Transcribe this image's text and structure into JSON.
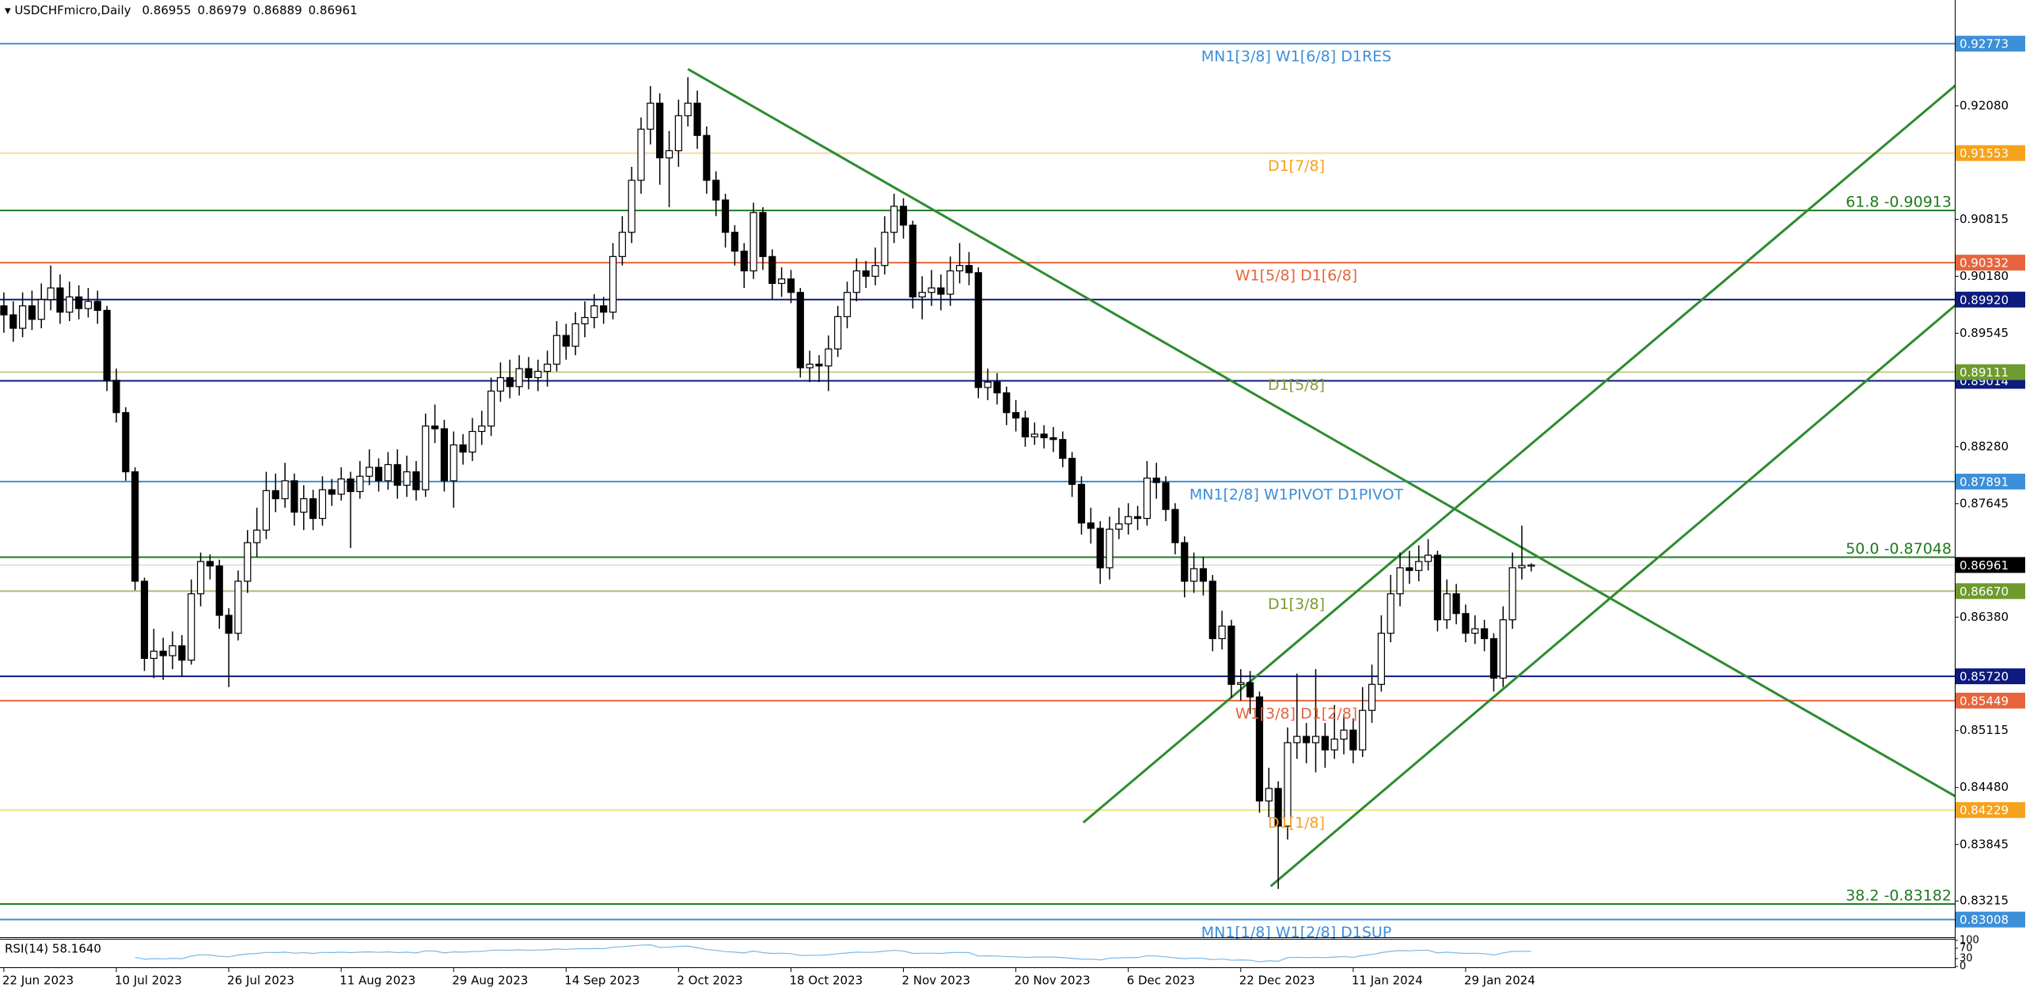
{
  "chart_data": {
    "type": "candlestick",
    "title": "USDCHFmicro,Daily",
    "bull_color": "#ffffff",
    "bear_color": "#000000",
    "categories": [
      "22 Jun 2023",
      null,
      null,
      null,
      null,
      null,
      null,
      null,
      null,
      null,
      null,
      null,
      "10 Jul 2023",
      null,
      null,
      null,
      null,
      null,
      null,
      null,
      null,
      null,
      null,
      null,
      "26 Jul 2023",
      null,
      null,
      null,
      null,
      null,
      null,
      null,
      null,
      null,
      null,
      null,
      "11 Aug 2023",
      null,
      null,
      null,
      null,
      null,
      null,
      null,
      null,
      null,
      null,
      null,
      "29 Aug 2023",
      null,
      null,
      null,
      null,
      null,
      null,
      null,
      null,
      null,
      null,
      null,
      "14 Sep 2023",
      null,
      null,
      null,
      null,
      null,
      null,
      null,
      null,
      null,
      null,
      null,
      "2 Oct 2023",
      null,
      null,
      null,
      null,
      null,
      null,
      null,
      null,
      null,
      null,
      null,
      "18 Oct 2023",
      null,
      null,
      null,
      null,
      null,
      null,
      null,
      null,
      null,
      null,
      null,
      "2 Nov 2023",
      null,
      null,
      null,
      null,
      null,
      null,
      null,
      null,
      null,
      null,
      null,
      "20 Nov 2023",
      null,
      null,
      null,
      null,
      null,
      null,
      null,
      null,
      null,
      null,
      null,
      "6 Dec 2023",
      null,
      null,
      null,
      null,
      null,
      null,
      null,
      null,
      null,
      null,
      null,
      "22 Dec 2023",
      null,
      null,
      null,
      null,
      null,
      null,
      null,
      null,
      null,
      null,
      null,
      "11 Jan 2024",
      null,
      null,
      null,
      null,
      null,
      null,
      null,
      null,
      null,
      null,
      null,
      "29 Jan 2024",
      null,
      null,
      null,
      null,
      null,
      null,
      null
    ],
    "open": [
      0.8985,
      0.8975,
      0.896,
      0.8985,
      0.897,
      0.8992,
      0.9005,
      0.8978,
      0.8995,
      0.8982,
      0.899,
      0.898,
      0.8902,
      0.8866,
      0.88,
      0.8678,
      0.8592,
      0.86,
      0.8595,
      0.8606,
      0.859,
      0.8664,
      0.87,
      0.8695,
      0.864,
      0.862,
      0.8678,
      0.8721,
      0.8735,
      0.8779,
      0.877,
      0.879,
      0.8755,
      0.877,
      0.8748,
      0.878,
      0.8775,
      0.8792,
      0.8778,
      0.8795,
      0.8805,
      0.879,
      0.8808,
      0.8785,
      0.88,
      0.878,
      0.8851,
      0.8848,
      0.879,
      0.883,
      0.8822,
      0.8845,
      0.8851,
      0.889,
      0.8905,
      0.8895,
      0.8915,
      0.8905,
      0.8912,
      0.892,
      0.8952,
      0.894,
      0.8965,
      0.8972,
      0.8985,
      0.8978,
      0.904,
      0.9067,
      0.9125,
      0.9182,
      0.9211,
      0.915,
      0.9158,
      0.9197,
      0.9211,
      0.9175,
      0.9125,
      0.9103,
      0.9067,
      0.9046,
      0.9024,
      0.9089,
      0.904,
      0.901,
      0.9015,
      0.9,
      0.8916,
      0.892,
      0.8918,
      0.8937,
      0.8973,
      0.9,
      0.9024,
      0.9018,
      0.903,
      0.9067,
      0.9096,
      0.9075,
      0.8995,
      0.9,
      0.9005,
      0.8998,
      0.9024,
      0.903,
      0.9022,
      0.8894,
      0.89,
      0.8888,
      0.8866,
      0.886,
      0.8839,
      0.8842,
      0.8838,
      0.8836,
      0.8815,
      0.8786,
      0.8743,
      0.8737,
      0.8693,
      0.8736,
      0.8742,
      0.875,
      0.8748,
      0.8793,
      0.8788,
      0.8758,
      0.8721,
      0.8678,
      0.8692,
      0.8678,
      0.8614,
      0.8628,
      0.8563,
      0.8565,
      0.8549,
      0.8433,
      0.8447,
      0.8405,
      0.8498,
      0.8505,
      0.8498,
      0.8505,
      0.849,
      0.8502,
      0.8512,
      0.849,
      0.8534,
      0.8563,
      0.862,
      0.8664,
      0.8693,
      0.869,
      0.87,
      0.8707,
      0.8635,
      0.8664,
      0.8642,
      0.862,
      0.8625,
      0.8614,
      0.857,
      0.8635,
      0.8693,
      0.86955
    ],
    "high": [
      0.9,
      0.899,
      0.9,
      0.9002,
      0.901,
      0.903,
      0.902,
      0.9012,
      0.9008,
      0.9005,
      0.9002,
      0.8985,
      0.8915,
      0.8872,
      0.8805,
      0.8682,
      0.8625,
      0.8615,
      0.8622,
      0.8618,
      0.868,
      0.871,
      0.8708,
      0.8702,
      0.8648,
      0.869,
      0.8735,
      0.876,
      0.88,
      0.8798,
      0.881,
      0.8798,
      0.8785,
      0.878,
      0.8795,
      0.8792,
      0.8805,
      0.88,
      0.8812,
      0.8825,
      0.8815,
      0.8822,
      0.8825,
      0.8818,
      0.8812,
      0.8865,
      0.8875,
      0.8858,
      0.8845,
      0.8842,
      0.886,
      0.8868,
      0.8905,
      0.8922,
      0.8925,
      0.893,
      0.8928,
      0.8925,
      0.8935,
      0.8968,
      0.8965,
      0.8978,
      0.899,
      0.8998,
      0.8995,
      0.9055,
      0.9085,
      0.914,
      0.9195,
      0.923,
      0.9222,
      0.918,
      0.9215,
      0.924,
      0.9225,
      0.9185,
      0.9135,
      0.911,
      0.9075,
      0.9055,
      0.91,
      0.9095,
      0.9048,
      0.9028,
      0.9025,
      0.9005,
      0.8935,
      0.893,
      0.8952,
      0.8985,
      0.9012,
      0.9038,
      0.9035,
      0.905,
      0.9085,
      0.911,
      0.9105,
      0.908,
      0.9018,
      0.9025,
      0.902,
      0.904,
      0.9055,
      0.9045,
      0.9028,
      0.8915,
      0.891,
      0.8895,
      0.888,
      0.8868,
      0.8855,
      0.8852,
      0.885,
      0.8845,
      0.8822,
      0.8795,
      0.876,
      0.8745,
      0.875,
      0.876,
      0.8765,
      0.8762,
      0.8812,
      0.881,
      0.8795,
      0.8765,
      0.8728,
      0.871,
      0.8705,
      0.8685,
      0.8645,
      0.8635,
      0.858,
      0.8578,
      0.8555,
      0.847,
      0.8455,
      0.8515,
      0.8575,
      0.852,
      0.858,
      0.852,
      0.854,
      0.853,
      0.8525,
      0.856,
      0.8585,
      0.864,
      0.8685,
      0.871,
      0.8712,
      0.8718,
      0.8725,
      0.8712,
      0.868,
      0.8675,
      0.8652,
      0.864,
      0.8635,
      0.862,
      0.865,
      0.871,
      0.874,
      0.86979
    ],
    "low": [
      0.8955,
      0.8945,
      0.895,
      0.8958,
      0.896,
      0.898,
      0.8965,
      0.8968,
      0.897,
      0.8972,
      0.8965,
      0.889,
      0.8855,
      0.879,
      0.8668,
      0.8578,
      0.857,
      0.8568,
      0.858,
      0.8572,
      0.8585,
      0.865,
      0.868,
      0.8625,
      0.856,
      0.8612,
      0.8665,
      0.8705,
      0.8725,
      0.8755,
      0.876,
      0.874,
      0.8735,
      0.8735,
      0.874,
      0.8762,
      0.8768,
      0.8715,
      0.877,
      0.8785,
      0.8778,
      0.878,
      0.877,
      0.8772,
      0.8768,
      0.8772,
      0.8832,
      0.8778,
      0.876,
      0.8808,
      0.8812,
      0.883,
      0.884,
      0.8878,
      0.8882,
      0.8885,
      0.8892,
      0.889,
      0.8895,
      0.8912,
      0.8925,
      0.893,
      0.895,
      0.896,
      0.8965,
      0.897,
      0.903,
      0.9055,
      0.911,
      0.9165,
      0.912,
      0.9095,
      0.914,
      0.9185,
      0.916,
      0.911,
      0.9085,
      0.905,
      0.903,
      0.9005,
      0.9015,
      0.9025,
      0.8992,
      0.8995,
      0.8988,
      0.8905,
      0.89,
      0.89,
      0.889,
      0.8928,
      0.896,
      0.899,
      0.9005,
      0.9008,
      0.902,
      0.9055,
      0.906,
      0.8982,
      0.897,
      0.8985,
      0.898,
      0.8985,
      0.901,
      0.9008,
      0.8882,
      0.888,
      0.8875,
      0.8852,
      0.8845,
      0.8828,
      0.883,
      0.8826,
      0.8822,
      0.8805,
      0.8772,
      0.873,
      0.872,
      0.8675,
      0.868,
      0.8725,
      0.873,
      0.8735,
      0.874,
      0.877,
      0.8745,
      0.8708,
      0.866,
      0.8665,
      0.8662,
      0.86,
      0.8602,
      0.8548,
      0.8545,
      0.853,
      0.842,
      0.8415,
      0.8335,
      0.839,
      0.848,
      0.8475,
      0.8465,
      0.847,
      0.848,
      0.8485,
      0.8475,
      0.8482,
      0.852,
      0.8555,
      0.861,
      0.865,
      0.8675,
      0.8678,
      0.869,
      0.8622,
      0.8625,
      0.863,
      0.861,
      0.8608,
      0.86,
      0.8555,
      0.856,
      0.8625,
      0.868,
      0.86889
    ],
    "close": [
      0.8975,
      0.896,
      0.8985,
      0.897,
      0.8992,
      0.9005,
      0.8978,
      0.8995,
      0.8982,
      0.899,
      0.898,
      0.8902,
      0.8866,
      0.88,
      0.8678,
      0.8592,
      0.86,
      0.8595,
      0.8606,
      0.859,
      0.8664,
      0.87,
      0.8695,
      0.864,
      0.862,
      0.8678,
      0.8721,
      0.8735,
      0.8779,
      0.877,
      0.879,
      0.8755,
      0.877,
      0.8748,
      0.878,
      0.8775,
      0.8792,
      0.8778,
      0.8795,
      0.8805,
      0.879,
      0.8808,
      0.8785,
      0.88,
      0.878,
      0.8851,
      0.8848,
      0.879,
      0.883,
      0.8822,
      0.8845,
      0.8851,
      0.889,
      0.8905,
      0.8895,
      0.8915,
      0.8905,
      0.8912,
      0.892,
      0.8952,
      0.894,
      0.8965,
      0.8972,
      0.8985,
      0.8978,
      0.904,
      0.9067,
      0.9125,
      0.9182,
      0.9211,
      0.915,
      0.9158,
      0.9197,
      0.9211,
      0.9175,
      0.9125,
      0.9103,
      0.9067,
      0.9046,
      0.9024,
      0.9089,
      0.904,
      0.901,
      0.9015,
      0.9,
      0.8916,
      0.892,
      0.8918,
      0.8937,
      0.8973,
      0.9,
      0.9024,
      0.9018,
      0.903,
      0.9067,
      0.9096,
      0.9075,
      0.8995,
      0.9,
      0.9005,
      0.8998,
      0.9024,
      0.903,
      0.9022,
      0.8894,
      0.89,
      0.8888,
      0.8866,
      0.886,
      0.8839,
      0.8842,
      0.8838,
      0.8836,
      0.8815,
      0.8786,
      0.8743,
      0.8737,
      0.8693,
      0.8736,
      0.8742,
      0.875,
      0.8748,
      0.8793,
      0.8788,
      0.8758,
      0.8721,
      0.8678,
      0.8692,
      0.8678,
      0.8614,
      0.8628,
      0.8563,
      0.8565,
      0.8549,
      0.8433,
      0.8447,
      0.8405,
      0.8498,
      0.8505,
      0.8498,
      0.8505,
      0.849,
      0.8502,
      0.8512,
      0.849,
      0.8534,
      0.8563,
      0.862,
      0.8664,
      0.8693,
      0.869,
      0.87,
      0.8707,
      0.8635,
      0.8664,
      0.8642,
      0.862,
      0.8625,
      0.8614,
      0.857,
      0.8635,
      0.8693,
      0.86955,
      0.86961
    ],
    "ylim": [
      0.8282,
      0.9326
    ],
    "yticks": [
      {
        "value": 0.9208,
        "label": "0.92080"
      },
      {
        "value": 0.90815,
        "label": "0.90815"
      },
      {
        "value": 0.9018,
        "label": "0.90180"
      },
      {
        "value": 0.89545,
        "label": "0.89545"
      },
      {
        "value": 0.8828,
        "label": "0.88280"
      },
      {
        "value": 0.87645,
        "label": "0.87645"
      },
      {
        "value": 0.8638,
        "label": "0.86380"
      },
      {
        "value": 0.85745,
        "label": "0.85745"
      },
      {
        "value": 0.85115,
        "label": "0.85115"
      },
      {
        "value": 0.8448,
        "label": "0.84480"
      },
      {
        "value": 0.83845,
        "label": "0.83845"
      },
      {
        "value": 0.83215,
        "label": "0.83215"
      }
    ],
    "levels": [
      {
        "value": 0.92773,
        "color": "#3d8fd8",
        "box_color": "#3d8fd8",
        "text": "MN1[3/8] W1[6/8] D1RES"
      },
      {
        "value": 0.91553,
        "color": "#f2dc9b",
        "box_color": "#f5a21c",
        "text": "D1[7/8]"
      },
      {
        "value": 0.90913,
        "color": "#1f7a1f",
        "text": "61.8 -0.90913"
      },
      {
        "value": 0.90332,
        "color": "#e8643c",
        "box_color": "#e8643c",
        "text": "W1[5/8] D1[6/8]"
      },
      {
        "value": 0.8992,
        "label": "0.89920",
        "color": "#0d1a7e",
        "box_color": "#0d1a7e"
      },
      {
        "value": 0.89014,
        "color": "#0d1a7e",
        "box_color": "#0d1a7e"
      },
      {
        "value": 0.89111,
        "color": "#c4cc8a",
        "box_color": "#6e9a2e",
        "text_color": "#8a9a3a",
        "text": "D1[5/8]"
      },
      {
        "value": 0.87891,
        "color": "#3d8fd8",
        "box_color": "#3d8fd8",
        "text": "MN1[2/8] W1PIVOT D1PIVOT"
      },
      {
        "value": 0.87048,
        "color": "#1f7a1f",
        "text": "50.0 -0.87048"
      },
      {
        "value": 0.8667,
        "label": "0.86670",
        "color": "#b0b878",
        "box_color": "#6e9a2e",
        "text_color": "#7a9a2e",
        "text": "D1[3/8]"
      },
      {
        "value": 0.8572,
        "label": "0.85720",
        "color": "#0d1a7e",
        "box_color": "#0d1a7e"
      },
      {
        "value": 0.85449,
        "color": "#e8643c",
        "box_color": "#e8643c",
        "text": "W1[3/8] D1[2/8]"
      },
      {
        "value": 0.84229,
        "color": "#ece57a",
        "box_color": "#f5a21c",
        "text": "D1[1/8]"
      },
      {
        "value": 0.83182,
        "color": "#1f7a1f",
        "text": "38.2 -0.83182"
      },
      {
        "value": 0.83008,
        "color": "#3d8fd8",
        "box_color": "#3d8fd8",
        "text": "MN1[1/8] W1[2/8] D1SUP"
      }
    ],
    "trendlines": [
      {
        "x": [
          73,
          208.3
        ],
        "y": [
          0.9249,
          0.8438
        ],
        "color": "#2e8b2e"
      },
      {
        "x": [
          115.2,
          208.3
        ],
        "y": [
          0.8409,
          0.9231
        ],
        "color": "#2e8b2e"
      },
      {
        "x": [
          135.2,
          208.3
        ],
        "y": [
          0.8338,
          0.8986
        ],
        "color": "#2e8b2e"
      }
    ],
    "indicator": {
      "type": "line",
      "title": "RSI(14) 58.1640",
      "color": "#7ab8e8",
      "ylim": [
        0,
        100
      ],
      "yticks": [
        0,
        30,
        70,
        100
      ],
      "values": [
        null,
        null,
        null,
        null,
        null,
        null,
        null,
        null,
        null,
        null,
        null,
        null,
        null,
        null,
        35,
        28,
        30,
        29,
        31,
        30,
        40,
        45,
        44,
        39,
        37,
        44,
        48,
        50,
        54,
        53,
        55,
        51,
        53,
        50,
        54,
        53,
        55,
        53,
        55,
        56,
        54,
        56,
        53,
        55,
        52,
        60,
        59,
        52,
        56,
        55,
        57,
        58,
        62,
        63,
        62,
        64,
        62,
        63,
        64,
        67,
        65,
        68,
        68,
        69,
        68,
        74,
        76,
        79,
        82,
        83,
        73,
        74,
        77,
        78,
        72,
        65,
        62,
        57,
        55,
        52,
        59,
        53,
        50,
        51,
        49,
        42,
        43,
        43,
        45,
        49,
        52,
        55,
        54,
        55,
        59,
        62,
        59,
        50,
        51,
        51,
        50,
        53,
        54,
        53,
        40,
        41,
        40,
        38,
        37,
        35,
        36,
        36,
        36,
        34,
        31,
        28,
        28,
        25,
        32,
        33,
        34,
        34,
        41,
        40,
        37,
        33,
        30,
        32,
        31,
        26,
        29,
        24,
        25,
        24,
        18,
        22,
        20,
        34,
        35,
        34,
        35,
        34,
        36,
        38,
        35,
        42,
        46,
        53,
        58,
        61,
        60,
        62,
        62,
        52,
        55,
        52,
        50,
        51,
        49,
        44,
        52,
        58,
        58.2,
        58.164
      ]
    }
  }
}
